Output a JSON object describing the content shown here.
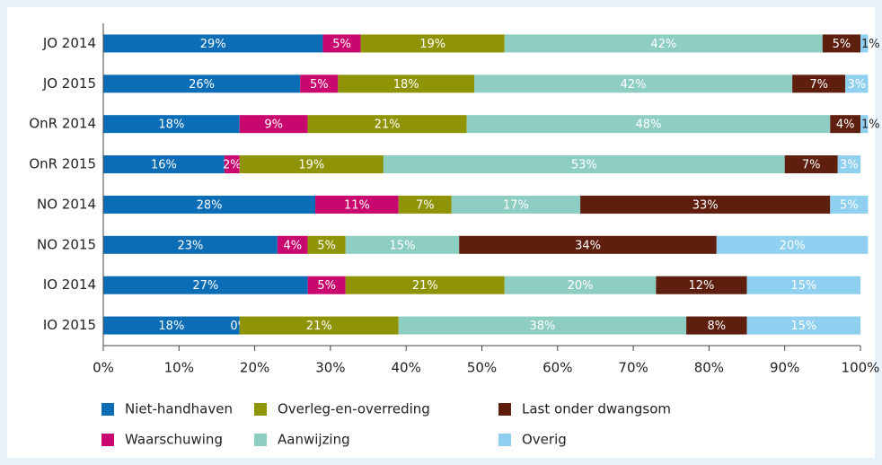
{
  "chart_data": {
    "type": "stacked_bar_horizontal",
    "categories": [
      "JO 2014",
      "JO 2015",
      "OnR 2014",
      "OnR 2015",
      "NO 2014",
      "NO 2015",
      "IO 2014",
      "IO 2015"
    ],
    "series": [
      {
        "name": "Niet-handhaven",
        "color": "#0a6db5",
        "values": [
          29,
          26,
          18,
          16,
          28,
          23,
          27,
          18
        ],
        "value_labels": [
          "29%",
          "26%",
          "18%",
          "16%",
          "28%",
          "23%",
          "27%",
          "18%"
        ]
      },
      {
        "name": "Waarschuwing",
        "color": "#c8086e",
        "values": [
          5,
          5,
          9,
          2,
          11,
          4,
          5,
          0
        ],
        "value_labels": [
          "5%",
          "5%",
          "9%",
          "2%",
          "11%",
          "4%",
          "5%",
          "0%"
        ]
      },
      {
        "name": "Overleg-en-overreding",
        "color": "#8f9406",
        "values": [
          19,
          18,
          21,
          19,
          7,
          5,
          21,
          21
        ],
        "value_labels": [
          "19%",
          "18%",
          "21%",
          "19%",
          "7%",
          "5%",
          "21%",
          "21%"
        ]
      },
      {
        "name": "Aanwijzing",
        "color": "#8ecdc1",
        "values": [
          42,
          42,
          48,
          53,
          17,
          15,
          20,
          38
        ],
        "value_labels": [
          "42%",
          "42%",
          "48%",
          "53%",
          "17%",
          "15%",
          "20%",
          "38%"
        ]
      },
      {
        "name": "Last onder dwangsom",
        "color": "#5e1f0e",
        "values": [
          5,
          7,
          4,
          7,
          33,
          34,
          12,
          8
        ],
        "value_labels": [
          "5%",
          "7%",
          "4%",
          "7%",
          "33%",
          "34%",
          "12%",
          "8%"
        ]
      },
      {
        "name": "Overig",
        "color": "#8fd0f0",
        "values": [
          1,
          3,
          1,
          3,
          5,
          20,
          15,
          15
        ],
        "value_labels": [
          "1%",
          "3%",
          "1%",
          "3%",
          "5%",
          "20%",
          "15%",
          "15%"
        ]
      }
    ],
    "xlim": [
      0,
      100
    ],
    "xticks": [
      {
        "value": 0,
        "label": "0%"
      },
      {
        "value": 10,
        "label": "10%"
      },
      {
        "value": 20,
        "label": "20%"
      },
      {
        "value": 30,
        "label": "30%"
      },
      {
        "value": 40,
        "label": "40%"
      },
      {
        "value": 50,
        "label": "50%"
      },
      {
        "value": 60,
        "label": "60%"
      },
      {
        "value": 70,
        "label": "70%"
      },
      {
        "value": 80,
        "label": "80%"
      },
      {
        "value": 90,
        "label": "90%"
      },
      {
        "value": 100,
        "label": "100%"
      }
    ]
  }
}
